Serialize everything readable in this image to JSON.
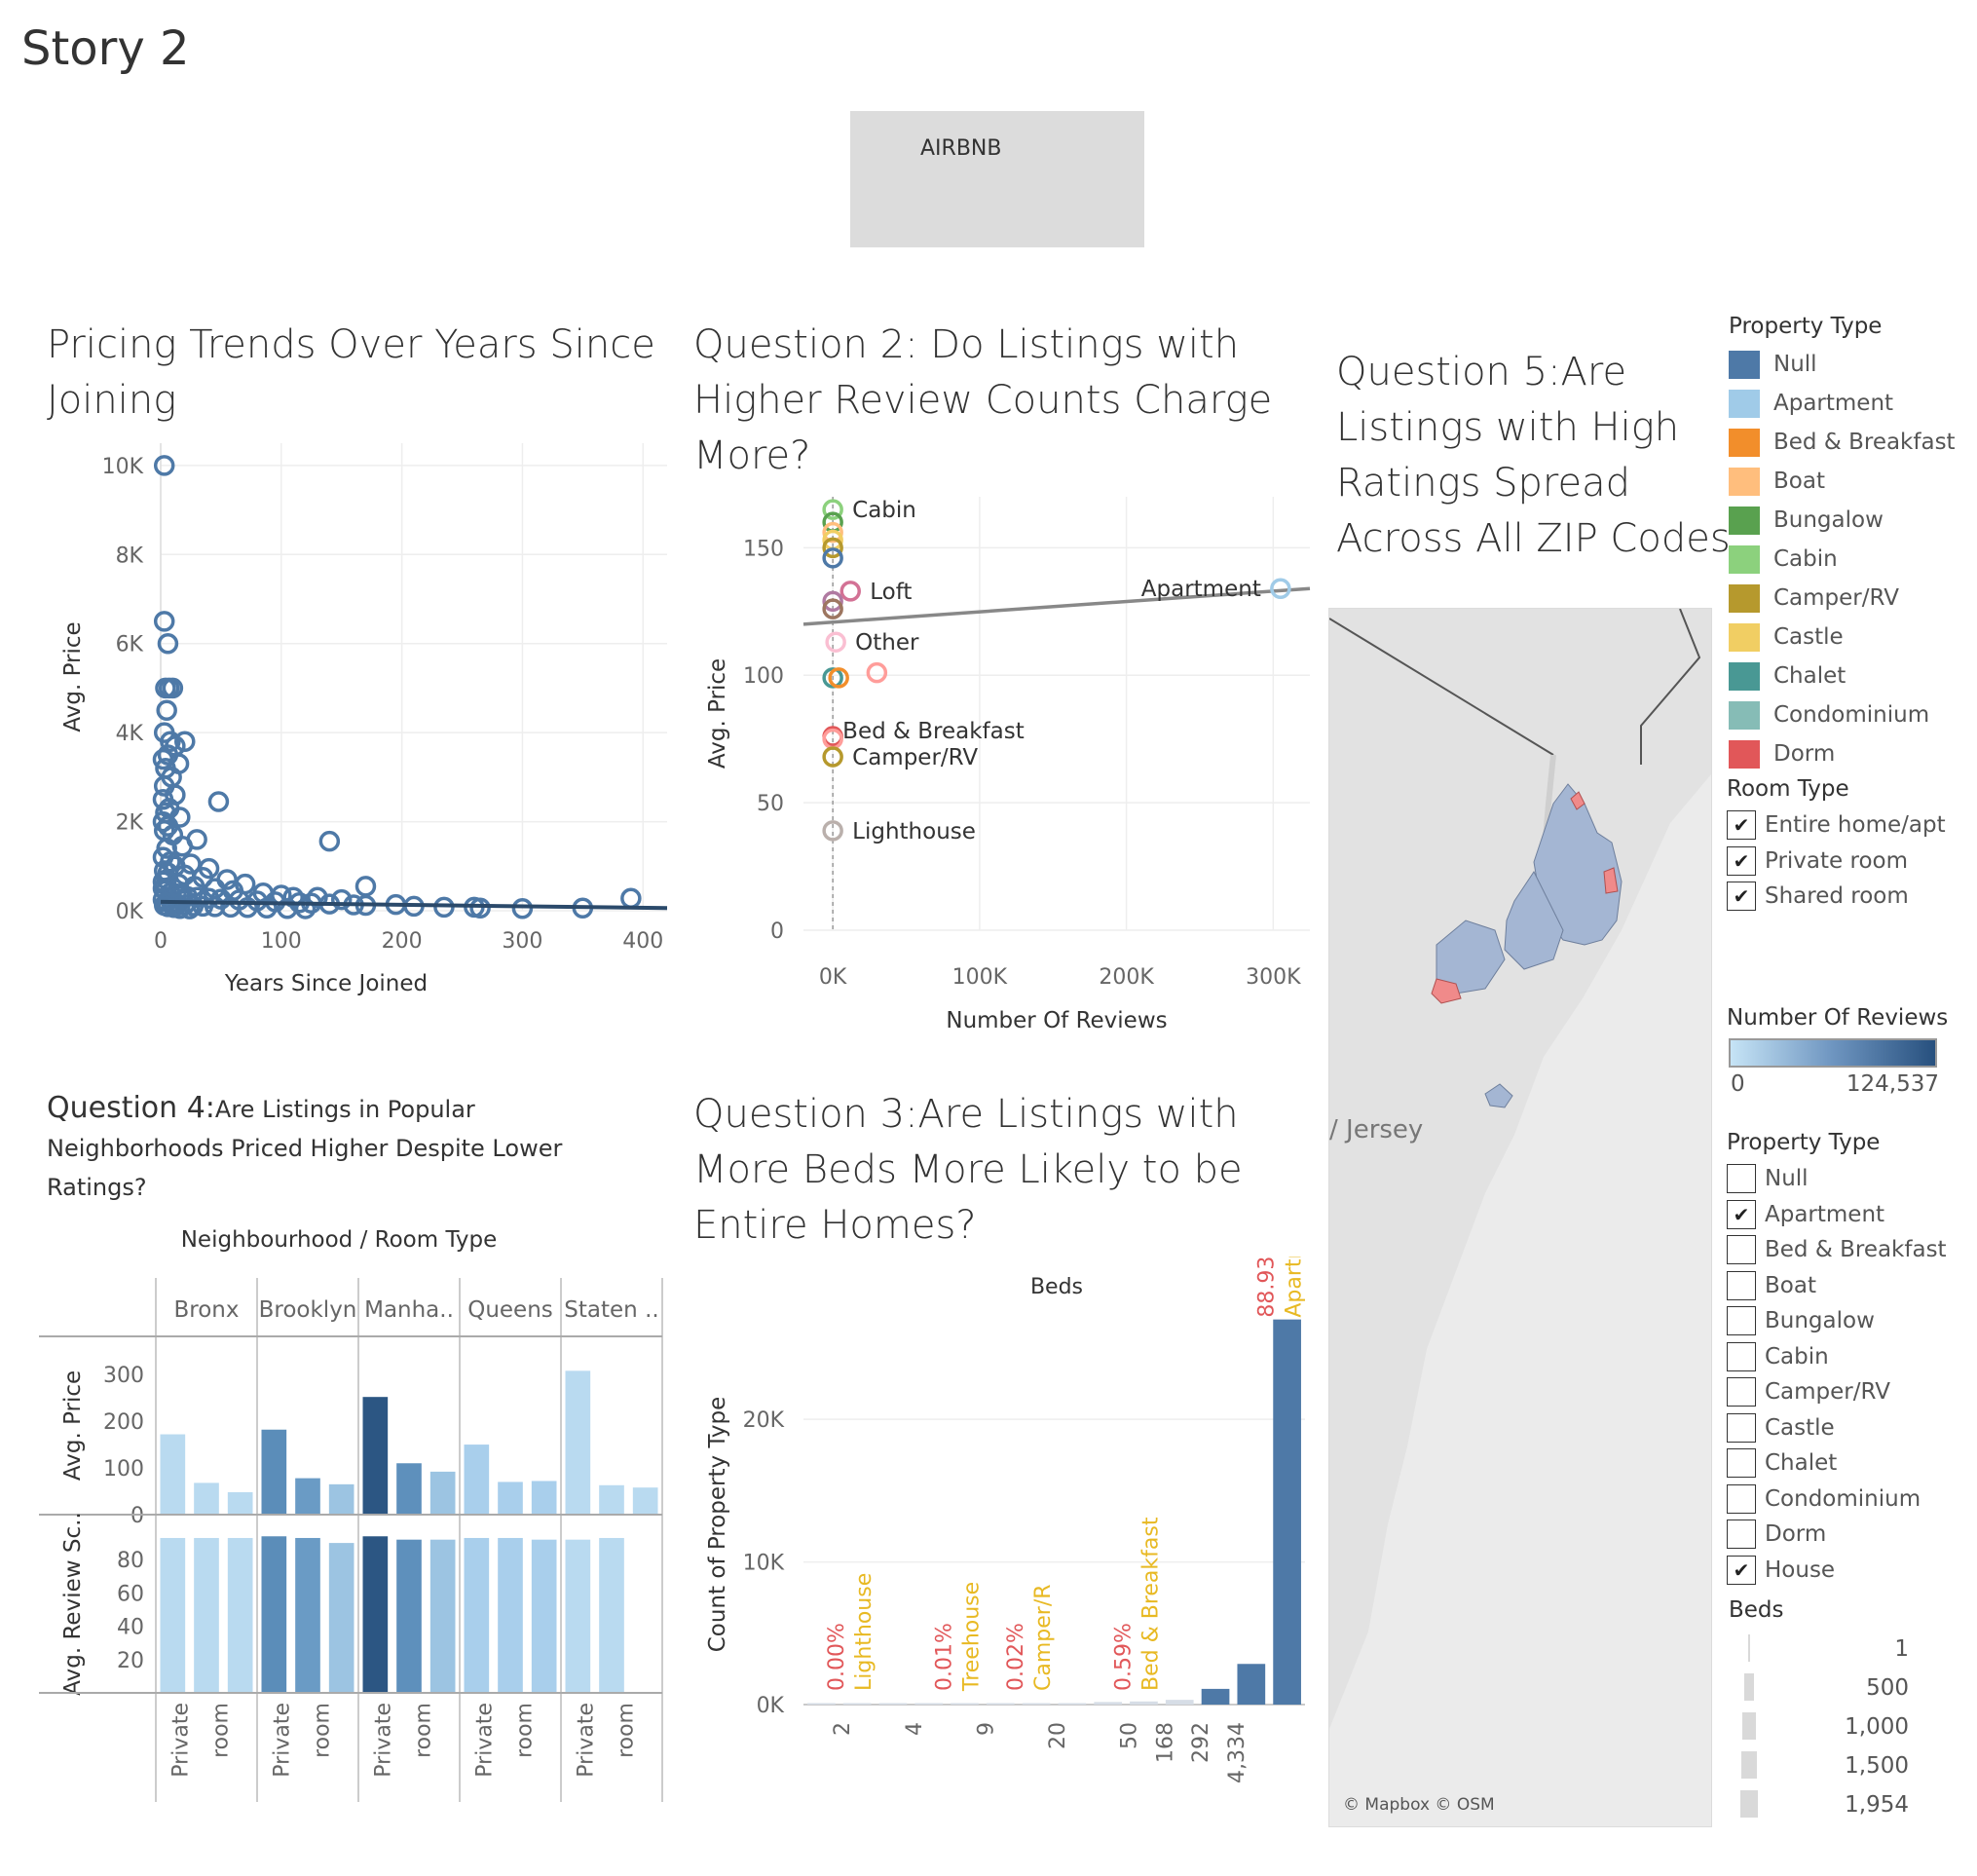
{
  "story": {
    "title": "Story 2"
  },
  "banner": {
    "text": "AIRBNB"
  },
  "colors": {
    "accent": "#4e79a7",
    "dark": "#2c5683",
    "light": "#b7d7ee",
    "trend": "#888888",
    "percent_label": "#e15759",
    "type_label": "#e8b923"
  },
  "q1": {
    "title_line1": "Pricing Trends Over Years Since",
    "title_line2": "Joining"
  },
  "q2": {
    "title_line1": "Question 2: Do Listings with",
    "title_line2": "Higher Review Counts Charge",
    "title_line3": "More?"
  },
  "q3": {
    "title_line1": "Question 3:Are Listings with",
    "title_line2": "More Beds More Likely to be",
    "title_line3": "Entire Homes?"
  },
  "q4": {
    "title_lead": "Question 4:",
    "title_rest1": "Are Listings in Popular",
    "title_line2": "Neighborhoods Priced Higher Despite Lower",
    "title_line3": "Ratings?"
  },
  "q5": {
    "title_line1": "Question 5:Are",
    "title_line2": "Listings with High",
    "title_line3": "Ratings Spread",
    "title_line4": "Across All ZIP Codes"
  },
  "chart_data": [
    {
      "type": "scatter",
      "title": "Pricing Trends Over Years Since Joining",
      "xlabel": "Years Since Joined",
      "ylabel": "Avg. Price",
      "xlim": [
        0,
        420
      ],
      "ylim": [
        0,
        10500
      ],
      "x_ticks": [
        0,
        100,
        200,
        300,
        400
      ],
      "x_tick_labels": [
        "0",
        "100",
        "200",
        "300",
        "400"
      ],
      "y_ticks": [
        0,
        2000,
        4000,
        6000,
        8000,
        10000
      ],
      "y_tick_labels": [
        "0K",
        "2K",
        "4K",
        "6K",
        "8K",
        "10K"
      ],
      "grid": true,
      "trend_line": {
        "x": [
          0,
          420
        ],
        "y": [
          200,
          60
        ]
      },
      "points": [
        [
          3,
          10000
        ],
        [
          3,
          6500
        ],
        [
          6,
          6000
        ],
        [
          4,
          5000
        ],
        [
          7,
          5000
        ],
        [
          10,
          5000
        ],
        [
          5,
          4500
        ],
        [
          3,
          4000
        ],
        [
          8,
          3800
        ],
        [
          12,
          3700
        ],
        [
          20,
          3800
        ],
        [
          6,
          3500
        ],
        [
          15,
          3300
        ],
        [
          2,
          3400
        ],
        [
          4,
          3200
        ],
        [
          9,
          3000
        ],
        [
          3,
          2800
        ],
        [
          12,
          2600
        ],
        [
          2,
          2500
        ],
        [
          7,
          2300
        ],
        [
          4,
          2200
        ],
        [
          16,
          2100
        ],
        [
          48,
          2450
        ],
        [
          140,
          1560
        ],
        [
          30,
          1600
        ],
        [
          3,
          1800
        ],
        [
          6,
          1900
        ],
        [
          2,
          2000
        ],
        [
          10,
          1700
        ],
        [
          5,
          1400
        ],
        [
          18,
          1450
        ],
        [
          2,
          1200
        ],
        [
          8,
          1100
        ],
        [
          12,
          1000
        ],
        [
          25,
          1050
        ],
        [
          40,
          950
        ],
        [
          3,
          900
        ],
        [
          6,
          850
        ],
        [
          20,
          800
        ],
        [
          35,
          750
        ],
        [
          55,
          700
        ],
        [
          70,
          600
        ],
        [
          5,
          700
        ],
        [
          2,
          650
        ],
        [
          15,
          600
        ],
        [
          28,
          550
        ],
        [
          45,
          500
        ],
        [
          60,
          450
        ],
        [
          85,
          400
        ],
        [
          100,
          350
        ],
        [
          110,
          300
        ],
        [
          130,
          300
        ],
        [
          150,
          250
        ],
        [
          170,
          550
        ],
        [
          2,
          500
        ],
        [
          4,
          450
        ],
        [
          8,
          400
        ],
        [
          13,
          380
        ],
        [
          18,
          350
        ],
        [
          22,
          320
        ],
        [
          30,
          300
        ],
        [
          40,
          280
        ],
        [
          50,
          260
        ],
        [
          65,
          240
        ],
        [
          80,
          220
        ],
        [
          95,
          200
        ],
        [
          115,
          180
        ],
        [
          125,
          170
        ],
        [
          140,
          150
        ],
        [
          160,
          130
        ],
        [
          170,
          120
        ],
        [
          195,
          140
        ],
        [
          210,
          100
        ],
        [
          235,
          80
        ],
        [
          260,
          80
        ],
        [
          265,
          60
        ],
        [
          300,
          50
        ],
        [
          350,
          60
        ],
        [
          390,
          280
        ],
        [
          2,
          250
        ],
        [
          5,
          200
        ],
        [
          9,
          180
        ],
        [
          14,
          150
        ],
        [
          20,
          130
        ],
        [
          27,
          110
        ],
        [
          35,
          100
        ],
        [
          45,
          90
        ],
        [
          58,
          80
        ],
        [
          72,
          70
        ],
        [
          88,
          60
        ],
        [
          105,
          50
        ],
        [
          120,
          45
        ],
        [
          3,
          120
        ],
        [
          6,
          90
        ],
        [
          11,
          70
        ],
        [
          16,
          50
        ],
        [
          24,
          40
        ]
      ]
    },
    {
      "type": "scatter",
      "title": "Question 2: Do Listings with Higher Review Counts Charge More?",
      "xlabel": "Number Of Reviews",
      "ylabel": "Avg. Price",
      "xlim": [
        -20000,
        325000
      ],
      "ylim": [
        0,
        170
      ],
      "x_ticks": [
        0,
        100000,
        200000,
        300000
      ],
      "x_tick_labels": [
        "0K",
        "100K",
        "200K",
        "300K"
      ],
      "y_ticks": [
        0,
        50,
        100,
        150
      ],
      "y_tick_labels": [
        "0",
        "50",
        "100",
        "150"
      ],
      "grid": true,
      "trend_line": {
        "x": [
          -20000,
          325000
        ],
        "y": [
          120,
          134
        ]
      },
      "points": [
        {
          "label": "Cabin",
          "x": 0,
          "y": 165,
          "color": "#8cd17d"
        },
        {
          "label": "",
          "x": 0,
          "y": 160,
          "color": "#59a14f"
        },
        {
          "label": "",
          "x": 0,
          "y": 156,
          "color": "#ffbe7d"
        },
        {
          "label": "",
          "x": 0,
          "y": 153,
          "color": "#f1ce63"
        },
        {
          "label": "",
          "x": 0,
          "y": 150,
          "color": "#b6992d"
        },
        {
          "label": "",
          "x": 0,
          "y": 146,
          "color": "#4e79a7"
        },
        {
          "label": "Loft",
          "x": 12000,
          "y": 133,
          "color": "#d37295"
        },
        {
          "label": "",
          "x": 0,
          "y": 129,
          "color": "#b07aa1"
        },
        {
          "label": "",
          "x": 0,
          "y": 126,
          "color": "#9d7660"
        },
        {
          "label": "Apartment",
          "x": 305000,
          "y": 134,
          "color": "#a0cbe8"
        },
        {
          "label": "Other",
          "x": 2000,
          "y": 113,
          "color": "#fabfd2"
        },
        {
          "label": "",
          "x": 30000,
          "y": 101,
          "color": "#ff9d9a"
        },
        {
          "label": "",
          "x": 0,
          "y": 99,
          "color": "#499894"
        },
        {
          "label": "Bed & Breakfast",
          "x": 4000,
          "y": 99,
          "color": "#f28e2b"
        },
        {
          "label": "",
          "x": 0,
          "y": 76,
          "color": "#e15759"
        },
        {
          "label": "",
          "x": 0,
          "y": 75,
          "color": "#ff9d9a"
        },
        {
          "label": "Camper/RV",
          "x": 0,
          "y": 68,
          "color": "#b6992d"
        },
        {
          "label": "Lighthouse",
          "x": 0,
          "y": 39,
          "color": "#bab0ac"
        }
      ]
    },
    {
      "type": "bar",
      "title": "Question 3:Are Listings with More Beds More Likely to be Entire Homes?",
      "xlabel": "Beds",
      "ylabel": "Count of Property Type",
      "ylim": [
        0,
        28000
      ],
      "y_ticks": [
        0,
        10000,
        20000
      ],
      "y_tick_labels": [
        "0K",
        "10K",
        "20K"
      ],
      "x_tick_labels": [
        "2",
        "4",
        "9",
        "20",
        "50",
        "168",
        "292",
        "4,334"
      ],
      "grid": true,
      "values": [
        2,
        2,
        3,
        5,
        8,
        15,
        40,
        90,
        180,
        220,
        330,
        1100,
        2850,
        27000
      ],
      "annotations": [
        {
          "percent": "0.00%",
          "type": "Lighthouse"
        },
        {
          "percent": "0.01%",
          "type": "Treehouse"
        },
        {
          "percent": "0.02%",
          "type": "Camper/R"
        },
        {
          "percent": "0.59%",
          "type": "Bed & Breakfast"
        },
        {
          "percent": "88.93%",
          "type": "Apartment"
        }
      ]
    },
    {
      "type": "bar",
      "title": "Question 4:Are Listings in Popular Neighborhoods Priced Higher Despite Lower Ratings?",
      "header": "Neighbourhood  /  Room Type",
      "neighbourhoods": [
        "Bronx",
        "Brooklyn",
        "Manha..",
        "Queens",
        "Staten .."
      ],
      "room_type_labels": [
        "Private",
        "room"
      ],
      "rows": [
        {
          "ylabel": "Avg. Price",
          "ylim": [
            0,
            340
          ],
          "y_ticks": [
            0,
            100,
            200,
            300
          ],
          "y_tick_labels": [
            "0",
            "100",
            "200",
            "300"
          ],
          "values": [
            [
              172,
              68,
              48
            ],
            [
              182,
              78,
              65
            ],
            [
              252,
              110,
              92
            ],
            [
              150,
              70,
              72
            ],
            [
              308,
              63,
              58
            ]
          ]
        },
        {
          "ylabel": "Avg. Review Sc..",
          "ylim": [
            0,
            100
          ],
          "y_ticks": [
            20,
            40,
            60,
            80
          ],
          "y_tick_labels": [
            "20",
            "40",
            "60",
            "80"
          ],
          "values": [
            [
              93,
              93,
              93
            ],
            [
              94,
              93,
              90
            ],
            [
              94,
              92,
              92
            ],
            [
              93,
              93,
              92
            ],
            [
              92,
              93,
              0
            ]
          ]
        }
      ],
      "bar_colors": [
        [
          "#b9daf0",
          "#b9daf0",
          "#b9daf0"
        ],
        [
          "#5b8db9",
          "#6a9bc5",
          "#9cc4e2"
        ],
        [
          "#2c5683",
          "#5e90bc",
          "#9cc4e2"
        ],
        [
          "#a9cfec",
          "#a9cfec",
          "#a9cfec"
        ],
        [
          "#b9daf0",
          "#b9daf0",
          "#b9daf0"
        ]
      ]
    }
  ],
  "map": {
    "state_label": "/ Jersey",
    "attribution": "© Mapbox © OSM"
  },
  "legends": {
    "property_type_color": {
      "title": "Property Type",
      "items": [
        {
          "label": "Null",
          "color": "#4e79a7"
        },
        {
          "label": "Apartment",
          "color": "#a0cbe8"
        },
        {
          "label": "Bed & Breakfast",
          "color": "#f28e2b"
        },
        {
          "label": "Boat",
          "color": "#ffbe7d"
        },
        {
          "label": "Bungalow",
          "color": "#59a14f"
        },
        {
          "label": "Cabin",
          "color": "#8cd17d"
        },
        {
          "label": "Camper/RV",
          "color": "#b6992d"
        },
        {
          "label": "Castle",
          "color": "#f1ce63"
        },
        {
          "label": "Chalet",
          "color": "#499894"
        },
        {
          "label": "Condominium",
          "color": "#86bcb6"
        },
        {
          "label": "Dorm",
          "color": "#e15759"
        }
      ]
    },
    "room_type": {
      "title": "Room Type",
      "items": [
        {
          "label": "Entire home/apt",
          "checked": "✔"
        },
        {
          "label": "Private room",
          "checked": "✔"
        },
        {
          "label": "Shared room",
          "checked": "✔"
        }
      ]
    },
    "reviews": {
      "title": "Number Of Reviews",
      "min": "0",
      "max": "124,537"
    },
    "property_type_filter": {
      "title": "Property Type",
      "items": [
        {
          "label": "Null",
          "checked": ""
        },
        {
          "label": "Apartment",
          "checked": "✔"
        },
        {
          "label": "Bed & Breakfast",
          "checked": ""
        },
        {
          "label": "Boat",
          "checked": ""
        },
        {
          "label": "Bungalow",
          "checked": ""
        },
        {
          "label": "Cabin",
          "checked": ""
        },
        {
          "label": "Camper/RV",
          "checked": ""
        },
        {
          "label": "Castle",
          "checked": ""
        },
        {
          "label": "Chalet",
          "checked": ""
        },
        {
          "label": "Condominium",
          "checked": ""
        },
        {
          "label": "Dorm",
          "checked": ""
        },
        {
          "label": "House",
          "checked": "✔"
        }
      ]
    },
    "beds": {
      "title": "Beds",
      "items": [
        {
          "label": "1",
          "size": 1
        },
        {
          "label": "500",
          "size": 500
        },
        {
          "label": "1,000",
          "size": 1000
        },
        {
          "label": "1,500",
          "size": 1500
        },
        {
          "label": "1,954",
          "size": 1954
        }
      ]
    }
  }
}
